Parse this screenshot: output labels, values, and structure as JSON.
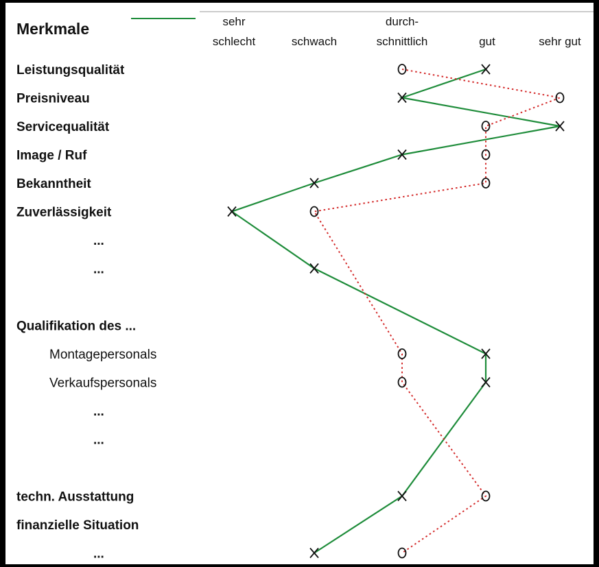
{
  "chart_data": {
    "type": "line",
    "title": "Merkmale",
    "columns": [
      "sehr schlecht",
      "schwach",
      "durch-schnittlich",
      "gut",
      "sehr gut"
    ],
    "column_header_lines": [
      [
        "sehr",
        "schlecht"
      ],
      [
        "",
        "schwach"
      ],
      [
        "durch-",
        "schnittlich"
      ],
      [
        "",
        "gut"
      ],
      [
        "",
        "sehr gut"
      ]
    ],
    "rows": [
      {
        "label": "Leistungsqualität",
        "style": "bold"
      },
      {
        "label": "Preisniveau",
        "style": "bold"
      },
      {
        "label": "Servicequalität",
        "style": "bold"
      },
      {
        "label": "Image / Ruf",
        "style": "bold"
      },
      {
        "label": "Bekanntheit",
        "style": "bold"
      },
      {
        "label": "Zuverlässigkeit",
        "style": "bold"
      },
      {
        "label": "...",
        "style": "dots"
      },
      {
        "label": "...",
        "style": "dots"
      },
      {
        "label": "",
        "style": "blank"
      },
      {
        "label": "Qualifikation des ...",
        "style": "bold"
      },
      {
        "label": "Montagepersonals",
        "style": "indent"
      },
      {
        "label": "Verkaufspersonals",
        "style": "indent"
      },
      {
        "label": "...",
        "style": "dots"
      },
      {
        "label": "...",
        "style": "dots"
      },
      {
        "label": "",
        "style": "blank"
      },
      {
        "label": "techn. Ausstattung",
        "style": "bold"
      },
      {
        "label": "finanzielle Situation",
        "style": "bold"
      },
      {
        "label": "...",
        "style": "dots"
      }
    ],
    "series": [
      {
        "symbol": "X",
        "color": "#1e8c3a",
        "line": "solid",
        "points": [
          {
            "row": 0,
            "value": 4
          },
          {
            "row": 1,
            "value": 3
          },
          {
            "row": 2,
            "value": 5
          },
          {
            "row": 3,
            "value": 3
          },
          {
            "row": 4,
            "value": 2
          },
          {
            "row": 5,
            "value": 1
          },
          {
            "row": 7,
            "value": 2
          },
          {
            "row": 10,
            "value": 4
          },
          {
            "row": 11,
            "value": 4
          },
          {
            "row": 15,
            "value": 3
          },
          {
            "row": 17,
            "value": 2
          }
        ]
      },
      {
        "symbol": "O",
        "color": "#d42a2a",
        "line": "dotted",
        "points": [
          {
            "row": 0,
            "value": 3
          },
          {
            "row": 1,
            "value": 5
          },
          {
            "row": 2,
            "value": 4
          },
          {
            "row": 3,
            "value": 4
          },
          {
            "row": 4,
            "value": 4
          },
          {
            "row": 5,
            "value": 2
          },
          {
            "row": 10,
            "value": 3
          },
          {
            "row": 11,
            "value": 3
          },
          {
            "row": 15,
            "value": 4
          },
          {
            "row": 17,
            "value": 3
          }
        ]
      }
    ]
  }
}
